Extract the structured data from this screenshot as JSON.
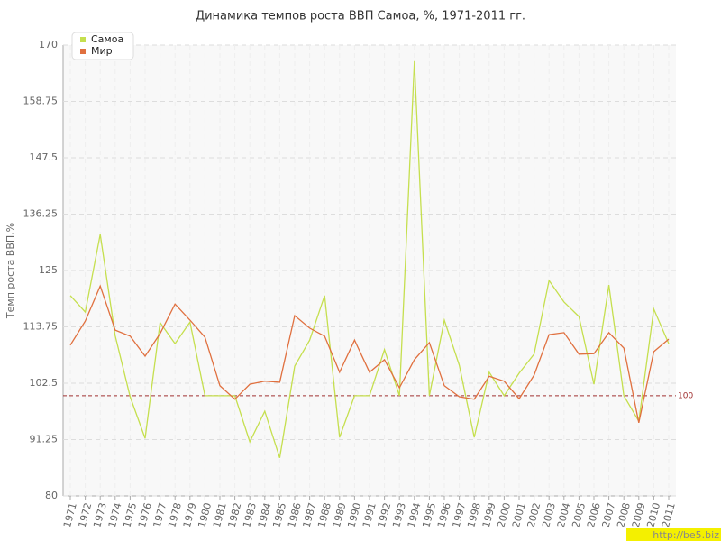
{
  "chart_data": {
    "type": "line",
    "title": "Динамика темпов роста ВВП Самоа, %, 1971-2011 гг.",
    "y_label": "Темп роста ВВП,%",
    "categories": [
      "1971",
      "1972",
      "1973",
      "1974",
      "1975",
      "1976",
      "1977",
      "1978",
      "1979",
      "1980",
      "1981",
      "1982",
      "1983",
      "1984",
      "1985",
      "1986",
      "1987",
      "1988",
      "1989",
      "1990",
      "1991",
      "1992",
      "1993",
      "1994",
      "1995",
      "1996",
      "1997",
      "1998",
      "1999",
      "2000",
      "2001",
      "2002",
      "2003",
      "2004",
      "2005",
      "2006",
      "2007",
      "2008",
      "2009",
      "2010",
      "2011"
    ],
    "series": [
      {
        "name": "Самоа",
        "color": "#c5df4e",
        "values": [
          120,
          116.7,
          132.2,
          112,
          99.8,
          91.5,
          114.6,
          110.4,
          114.7,
          100,
          100,
          100,
          90.8,
          96.9,
          87.6,
          105.9,
          111.1,
          120,
          91.7,
          100,
          100,
          109.2,
          100,
          166.8,
          100,
          115.1,
          106.1,
          91.7,
          104.7,
          100,
          104.5,
          108.3,
          123,
          118.7,
          115.8,
          102.3,
          122.1,
          100,
          94.9,
          117.3,
          110.4
        ]
      },
      {
        "name": "Мир",
        "color": "#e0703f",
        "values": [
          110.1,
          114.9,
          121.9,
          113.1,
          111.9,
          107.9,
          112.4,
          118.3,
          115.1,
          111.7,
          102,
          99.3,
          102.3,
          102.9,
          102.7,
          116,
          113.5,
          111.9,
          104.7,
          111.1,
          104.7,
          107.2,
          101.6,
          107.2,
          110.6,
          102,
          99.8,
          99.3,
          103.9,
          102.9,
          99.4,
          104.1,
          112.2,
          112.6,
          108.3,
          108.4,
          112.6,
          109.5,
          94.6,
          108.8,
          111.3
        ]
      }
    ],
    "ylim": [
      80,
      170
    ],
    "yticks": [
      80,
      91.25,
      102.5,
      113.75,
      125,
      136.25,
      147.5,
      158.75,
      170
    ],
    "grid": true,
    "reference_line": 100,
    "reference_color": "#a03030",
    "legend_position": "top-left",
    "watermark": "http://be5.biz"
  }
}
